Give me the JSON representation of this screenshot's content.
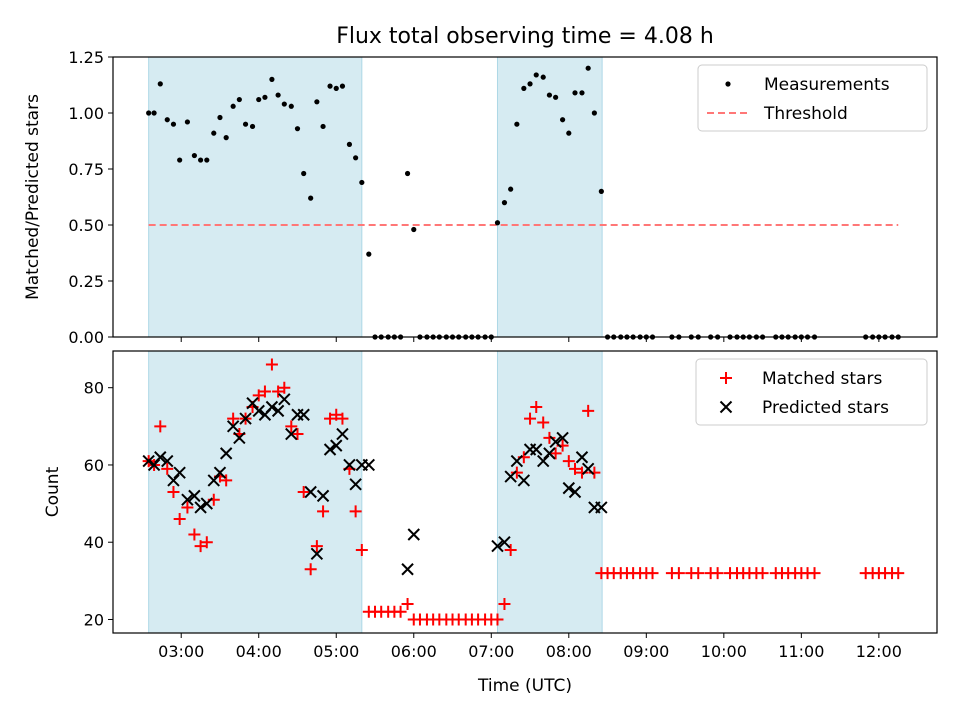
{
  "figure_title": "Flux total observing time = 4.08 h",
  "colors": {
    "shade": "#add8e6",
    "threshold": "#ff7777",
    "measurement": "#000000",
    "matched": "#ff0000",
    "predicted": "#000000"
  },
  "chart_data": [
    {
      "type": "scatter",
      "title": "Flux total observing time = 4.08 h",
      "xlabel": "",
      "ylabel": "Matched/Predicted stars",
      "xlim": [
        2.12,
        12.75
      ],
      "ylim": [
        0,
        1.25
      ],
      "yticks": [
        0,
        0.25,
        0.5,
        0.75,
        1.0,
        1.25
      ],
      "ytick_labels": [
        "0.00",
        "0.25",
        "0.50",
        "0.75",
        "1.00",
        "1.25"
      ],
      "shaded_intervals": [
        [
          2.58,
          5.33
        ],
        [
          7.08,
          8.43
        ]
      ],
      "legend": [
        "Measurements",
        "Threshold"
      ],
      "legend_position": "upper right",
      "threshold": {
        "value": 0.5,
        "x_range": [
          2.58,
          12.25
        ]
      },
      "series": [
        {
          "name": "Measurements",
          "x": [
            2.58,
            2.65,
            2.73,
            2.82,
            2.9,
            2.98,
            3.08,
            3.17,
            3.25,
            3.33,
            3.42,
            3.5,
            3.58,
            3.67,
            3.75,
            3.83,
            3.92,
            4.0,
            4.08,
            4.17,
            4.25,
            4.33,
            4.42,
            4.5,
            4.58,
            4.67,
            4.75,
            4.83,
            4.92,
            5.0,
            5.08,
            5.17,
            5.25,
            5.33,
            5.42,
            5.5,
            5.58,
            5.67,
            5.75,
            5.83,
            5.92,
            6.0,
            6.08,
            6.17,
            6.25,
            6.33,
            6.42,
            6.5,
            6.58,
            6.67,
            6.75,
            6.83,
            6.92,
            7.0,
            7.08,
            7.17,
            7.25,
            7.33,
            7.42,
            7.5,
            7.58,
            7.67,
            7.75,
            7.83,
            7.92,
            8.0,
            8.08,
            8.17,
            8.25,
            8.33,
            8.42,
            8.5,
            8.58,
            8.67,
            8.75,
            8.83,
            8.92,
            9.0,
            9.08,
            9.33,
            9.42,
            9.58,
            9.67,
            9.83,
            9.92,
            10.08,
            10.17,
            10.25,
            10.33,
            10.42,
            10.5,
            10.67,
            10.75,
            10.83,
            10.92,
            11.0,
            11.08,
            11.17,
            11.83,
            11.92,
            12.0,
            12.08,
            12.17,
            12.25
          ],
          "values": [
            1.0,
            1.0,
            1.13,
            0.97,
            0.95,
            0.79,
            0.96,
            0.81,
            0.79,
            0.79,
            0.91,
            0.98,
            0.89,
            1.03,
            1.06,
            0.95,
            0.94,
            1.06,
            1.07,
            1.15,
            1.08,
            1.04,
            1.03,
            0.93,
            0.73,
            0.62,
            1.05,
            0.94,
            1.12,
            1.11,
            1.12,
            0.86,
            0.8,
            0.69,
            0.37,
            0.0,
            0.0,
            0.0,
            0.0,
            0.0,
            0.73,
            0.48,
            0.0,
            0.0,
            0.0,
            0.0,
            0.0,
            0.0,
            0.0,
            0.0,
            0.0,
            0.0,
            0.0,
            0.0,
            0.51,
            0.6,
            0.66,
            0.95,
            1.11,
            1.13,
            1.17,
            1.16,
            1.08,
            1.07,
            0.97,
            0.91,
            1.09,
            1.09,
            1.2,
            1.0,
            0.65,
            0.0,
            0.0,
            0.0,
            0.0,
            0.0,
            0.0,
            0.0,
            0.0,
            0.0,
            0.0,
            0.0,
            0.0,
            0.0,
            0.0,
            0.0,
            0.0,
            0.0,
            0.0,
            0.0,
            0.0,
            0.0,
            0.0,
            0.0,
            0.0,
            0.0,
            0.0,
            0.0,
            0.0,
            0.0,
            0.0,
            0.0,
            0.0,
            0.0
          ]
        }
      ]
    },
    {
      "type": "scatter",
      "title": "",
      "xlabel": "Time (UTC)",
      "ylabel": "Count",
      "xlim": [
        2.12,
        12.75
      ],
      "ylim": [
        16.5,
        89.5
      ],
      "yticks": [
        20,
        40,
        60,
        80
      ],
      "ytick_labels": [
        "20",
        "40",
        "60",
        "80"
      ],
      "xticks": [
        3,
        4,
        5,
        6,
        7,
        8,
        9,
        10,
        11,
        12
      ],
      "xtick_labels": [
        "03:00",
        "04:00",
        "05:00",
        "06:00",
        "07:00",
        "08:00",
        "09:00",
        "10:00",
        "11:00",
        "12:00"
      ],
      "shaded_intervals": [
        [
          2.58,
          5.33
        ],
        [
          7.08,
          8.43
        ]
      ],
      "legend": [
        "Matched stars",
        "Predicted stars"
      ],
      "legend_position": "upper right",
      "series": [
        {
          "name": "Matched stars",
          "marker": "+",
          "x": [
            2.58,
            2.65,
            2.73,
            2.82,
            2.9,
            2.98,
            3.08,
            3.17,
            3.25,
            3.33,
            3.42,
            3.5,
            3.58,
            3.67,
            3.75,
            3.83,
            3.92,
            4.0,
            4.08,
            4.17,
            4.25,
            4.33,
            4.42,
            4.5,
            4.58,
            4.67,
            4.75,
            4.83,
            4.92,
            5.0,
            5.08,
            5.17,
            5.25,
            5.33,
            5.42,
            5.5,
            5.58,
            5.67,
            5.75,
            5.83,
            5.92,
            6.0,
            6.08,
            6.17,
            6.25,
            6.33,
            6.42,
            6.5,
            6.58,
            6.67,
            6.75,
            6.83,
            6.92,
            7.0,
            7.08,
            7.17,
            7.25,
            7.33,
            7.42,
            7.5,
            7.58,
            7.67,
            7.75,
            7.83,
            7.92,
            8.0,
            8.08,
            8.17,
            8.25,
            8.33,
            8.42,
            8.5,
            8.58,
            8.67,
            8.75,
            8.83,
            8.92,
            9.0,
            9.08,
            9.33,
            9.42,
            9.58,
            9.67,
            9.83,
            9.92,
            10.08,
            10.17,
            10.25,
            10.33,
            10.42,
            10.5,
            10.67,
            10.75,
            10.83,
            10.92,
            11.0,
            11.08,
            11.17,
            11.83,
            11.92,
            12.0,
            12.08,
            12.17,
            12.25
          ],
          "values": [
            61,
            60,
            70,
            59,
            53,
            46,
            49,
            42,
            39,
            40,
            51,
            57,
            56,
            72,
            68,
            72,
            75,
            78,
            79,
            86,
            79,
            80,
            70,
            68,
            53,
            33,
            39,
            48,
            72,
            73,
            72,
            59,
            48,
            38,
            22,
            22,
            22,
            22,
            22,
            22,
            24,
            20,
            20,
            20,
            20,
            20,
            20,
            20,
            20,
            20,
            20,
            20,
            20,
            20,
            20,
            24,
            38,
            58,
            62,
            72,
            75,
            71,
            67,
            63,
            65,
            61,
            59,
            58,
            74,
            58,
            32,
            32,
            32,
            32,
            32,
            32,
            32,
            32,
            32,
            32,
            32,
            32,
            32,
            32,
            32,
            32,
            32,
            32,
            32,
            32,
            32,
            32,
            32,
            32,
            32,
            32,
            32,
            32,
            32,
            32,
            32,
            32,
            32,
            32
          ]
        },
        {
          "name": "Predicted stars",
          "marker": "x",
          "x": [
            2.58,
            2.65,
            2.73,
            2.82,
            2.9,
            2.98,
            3.08,
            3.17,
            3.25,
            3.33,
            3.42,
            3.5,
            3.58,
            3.67,
            3.75,
            3.83,
            3.92,
            4.0,
            4.08,
            4.17,
            4.25,
            4.33,
            4.42,
            4.5,
            4.58,
            4.67,
            4.75,
            4.83,
            4.92,
            5.0,
            5.08,
            5.17,
            5.25,
            5.33,
            5.42,
            5.92,
            6.0,
            7.08,
            7.17,
            7.25,
            7.33,
            7.42,
            7.5,
            7.58,
            7.67,
            7.75,
            7.83,
            7.92,
            8.0,
            8.08,
            8.17,
            8.25,
            8.33,
            8.42
          ],
          "values": [
            61,
            60,
            62,
            61,
            56,
            58,
            51,
            52,
            49,
            50,
            56,
            58,
            63,
            70,
            67,
            72,
            76,
            74,
            73,
            75,
            74,
            77,
            68,
            73,
            73,
            53,
            37,
            52,
            64,
            65,
            68,
            60,
            55,
            60,
            60,
            33,
            42,
            39,
            40,
            57,
            61,
            56,
            64,
            64,
            61,
            63,
            66,
            67,
            54,
            53,
            62,
            59,
            49,
            49
          ]
        }
      ]
    }
  ]
}
